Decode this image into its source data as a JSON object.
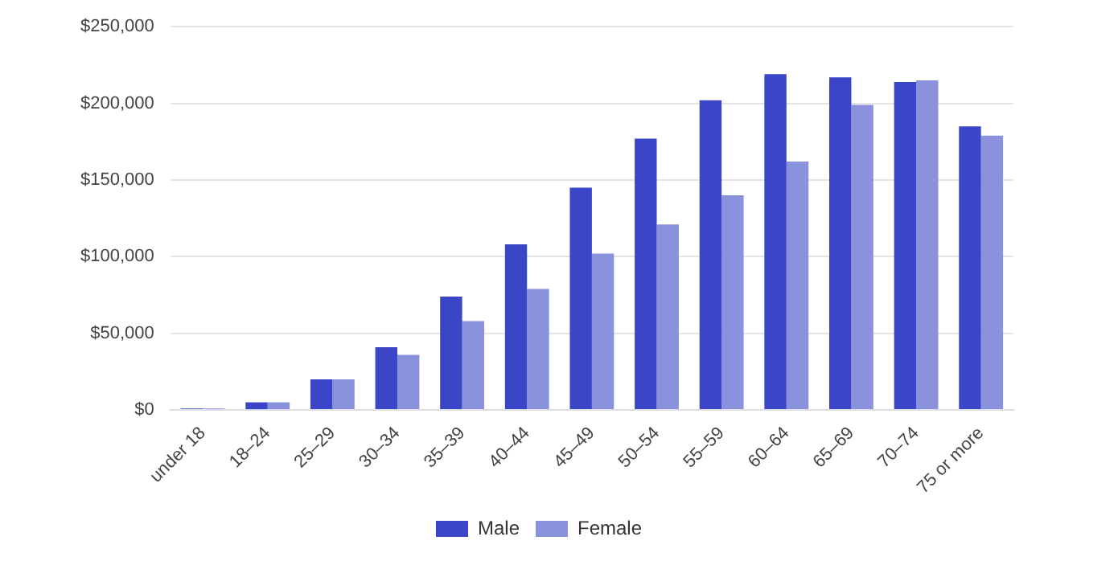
{
  "chart_data": {
    "type": "bar",
    "categories": [
      "under 18",
      "18–24",
      "25–29",
      "30–34",
      "35–39",
      "40–44",
      "45–49",
      "50–54",
      "55–59",
      "60–64",
      "65–69",
      "70–74",
      "75 or more"
    ],
    "series": [
      {
        "name": "Male",
        "color": "#3a45c8",
        "values": [
          1000,
          5000,
          20000,
          41000,
          74000,
          108000,
          145000,
          177000,
          202000,
          219000,
          217000,
          214000,
          185000
        ]
      },
      {
        "name": "Female",
        "color": "#8a92dd",
        "values": [
          1000,
          5000,
          20000,
          36000,
          58000,
          79000,
          102000,
          121000,
          140000,
          162000,
          199000,
          215000,
          179000
        ]
      }
    ],
    "ylim": [
      0,
      250000
    ],
    "yticks": [
      {
        "value": 0,
        "label": "$0"
      },
      {
        "value": 50000,
        "label": "$50,000"
      },
      {
        "value": 100000,
        "label": "$100,000"
      },
      {
        "value": 150000,
        "label": "$150,000"
      },
      {
        "value": 200000,
        "label": "$200,000"
      },
      {
        "value": 250000,
        "label": "$250,000"
      }
    ],
    "grid": "y",
    "legend": "bottom"
  }
}
